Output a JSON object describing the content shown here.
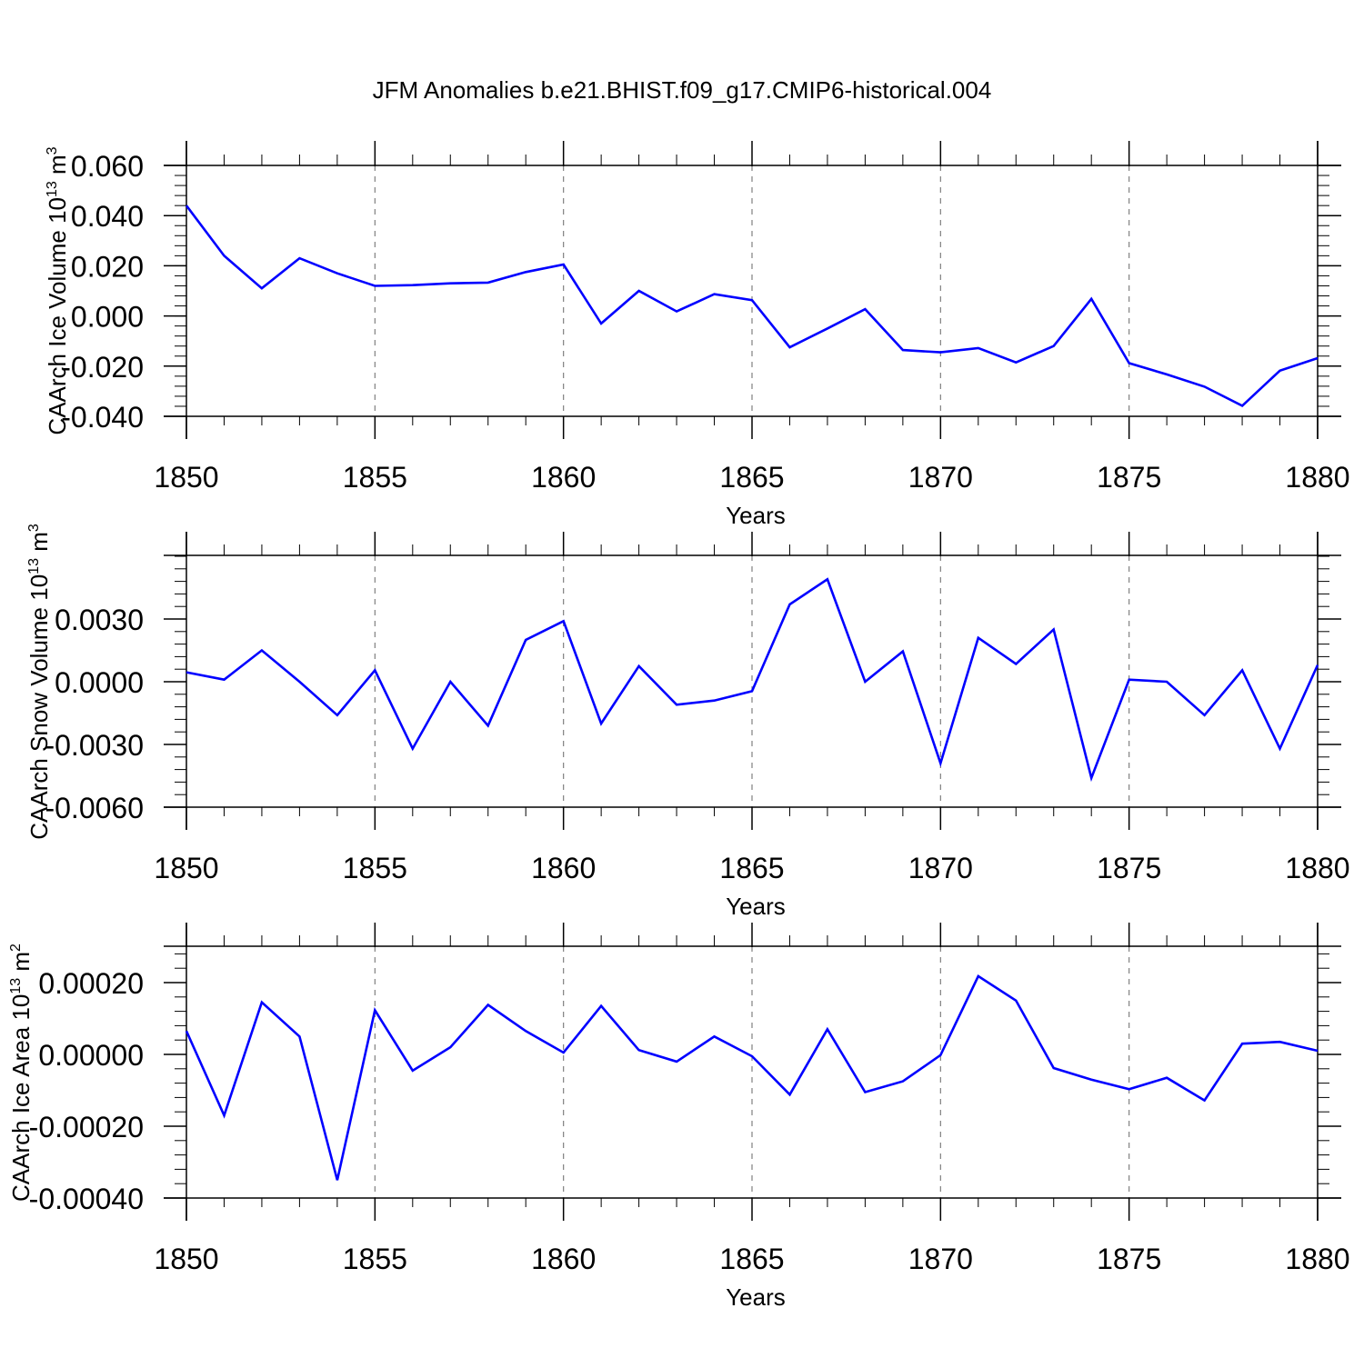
{
  "title": "JFM Anomalies b.e21.BHIST.f09_g17.CMIP6-historical.004",
  "colors": {
    "line": "#0000ff",
    "axis": "#000000",
    "grid": "#808080"
  },
  "chart_data": [
    {
      "type": "line",
      "xlabel": "Years",
      "ylabel": "CAArch Ice Volume 10",
      "ylabel_sup": "13",
      "ylabel_unit": " m",
      "ylabel_unit_sup": "3",
      "xlim": [
        1850,
        1880
      ],
      "ylim": [
        -0.04,
        0.06
      ],
      "x_ticks": [
        "1850",
        "1855",
        "1860",
        "1865",
        "1870",
        "1875",
        "1880"
      ],
      "y_ticks": [
        "0.060",
        "0.040",
        "0.020",
        "0.000",
        "-0.020",
        "-0.040"
      ],
      "y_tick_values": [
        0.06,
        0.04,
        0.02,
        0.0,
        -0.02,
        -0.04
      ],
      "grid": "dashed vertical at major x ticks",
      "x": [
        1850,
        1851,
        1852,
        1853,
        1854,
        1855,
        1856,
        1857,
        1858,
        1859,
        1860,
        1861,
        1862,
        1863,
        1864,
        1865,
        1866,
        1867,
        1868,
        1869,
        1870,
        1871,
        1872,
        1873,
        1874,
        1875,
        1876,
        1877,
        1878,
        1879,
        1880
      ],
      "values": [
        0.044,
        0.024,
        0.011,
        0.023,
        0.017,
        0.012,
        0.0123,
        0.013,
        0.0133,
        0.0175,
        0.0205,
        -0.003,
        0.01,
        0.0018,
        0.0087,
        0.0063,
        -0.0125,
        -0.005,
        0.0027,
        -0.0136,
        -0.0145,
        -0.0128,
        -0.0185,
        -0.012,
        0.0068,
        -0.0188,
        -0.0233,
        -0.0282,
        -0.0358,
        -0.0218,
        -0.0168
      ]
    },
    {
      "type": "line",
      "xlabel": "Years",
      "ylabel": "CAArch Snow Volume 10",
      "ylabel_sup": "13",
      "ylabel_unit": " m",
      "ylabel_unit_sup": "3",
      "xlim": [
        1850,
        1880
      ],
      "ylim": [
        -0.006,
        0.006
      ],
      "x_ticks": [
        "1850",
        "1855",
        "1860",
        "1865",
        "1870",
        "1875",
        "1880"
      ],
      "y_ticks": [
        "0.0030",
        "0.0000",
        "-0.0030",
        "-0.0060"
      ],
      "y_tick_values": [
        0.003,
        0.0,
        -0.003,
        -0.006
      ],
      "grid": "dashed vertical at major x ticks",
      "x": [
        1850,
        1851,
        1852,
        1853,
        1854,
        1855,
        1856,
        1857,
        1858,
        1859,
        1860,
        1861,
        1862,
        1863,
        1864,
        1865,
        1866,
        1867,
        1868,
        1869,
        1870,
        1871,
        1872,
        1873,
        1874,
        1875,
        1876,
        1877,
        1878,
        1879,
        1880
      ],
      "values": [
        0.00045,
        0.0001,
        0.0015,
        0.0,
        -0.0016,
        0.00055,
        -0.0032,
        0.0,
        -0.0021,
        0.002,
        0.0029,
        -0.002,
        0.00075,
        -0.0011,
        -0.0009,
        -0.00045,
        0.0037,
        0.0049,
        0.0,
        0.00145,
        -0.0039,
        0.0021,
        0.00085,
        0.0025,
        -0.0046,
        0.0001,
        0.0,
        -0.0016,
        0.00055,
        -0.0032,
        0.0008
      ]
    },
    {
      "type": "line",
      "xlabel": "Years",
      "ylabel": "CAArch Ice Area 10",
      "ylabel_sup": "13",
      "ylabel_unit": " m",
      "ylabel_unit_sup": "2",
      "xlim": [
        1850,
        1880
      ],
      "ylim": [
        -0.0004,
        0.0003
      ],
      "x_ticks": [
        "1850",
        "1855",
        "1860",
        "1865",
        "1870",
        "1875",
        "1880"
      ],
      "y_ticks": [
        "0.00020",
        "0.00000",
        "-0.00020",
        "-0.00040"
      ],
      "y_tick_values": [
        0.0002,
        0.0,
        -0.0002,
        -0.0004
      ],
      "grid": "dashed vertical at major x ticks",
      "x": [
        1850,
        1851,
        1852,
        1853,
        1854,
        1855,
        1856,
        1857,
        1858,
        1859,
        1860,
        1861,
        1862,
        1863,
        1864,
        1865,
        1866,
        1867,
        1868,
        1869,
        1870,
        1871,
        1872,
        1873,
        1874,
        1875,
        1876,
        1877,
        1878,
        1879,
        1880
      ],
      "values": [
        6.5e-05,
        -0.00017,
        0.000145,
        5e-05,
        -0.00035,
        0.000123,
        -4.5e-05,
        2e-05,
        0.000138,
        6.5e-05,
        5e-06,
        0.000135,
        1.2e-05,
        -2e-05,
        5e-05,
        -5e-06,
        -0.000112,
        7e-05,
        -0.000105,
        -7.5e-05,
        -2e-06,
        0.000218,
        0.00015,
        -3.8e-05,
        -7e-05,
        -9.7e-05,
        -6.5e-05,
        -0.000128,
        3e-05,
        3.5e-05,
        1e-05
      ]
    }
  ]
}
